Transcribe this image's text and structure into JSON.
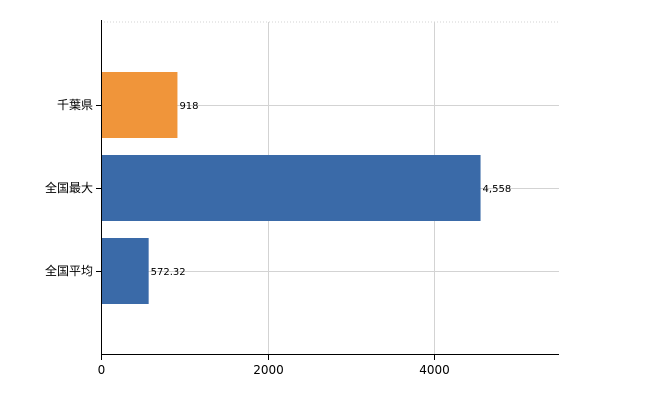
{
  "chart_data": {
    "type": "bar",
    "orientation": "horizontal",
    "title": "",
    "xlabel": "",
    "ylabel": "",
    "xlim": [
      0,
      5500
    ],
    "x_ticks": [
      0,
      2000,
      4000
    ],
    "grid": true,
    "legend": "none",
    "categories": [
      "千葉県",
      "全国最大",
      "全国平均"
    ],
    "values": [
      918,
      4558,
      572.32
    ],
    "value_labels": [
      "918",
      "4,558",
      "572.32"
    ],
    "colors": [
      "#f0953a",
      "#3a6aa8",
      "#3a6aa8"
    ]
  }
}
